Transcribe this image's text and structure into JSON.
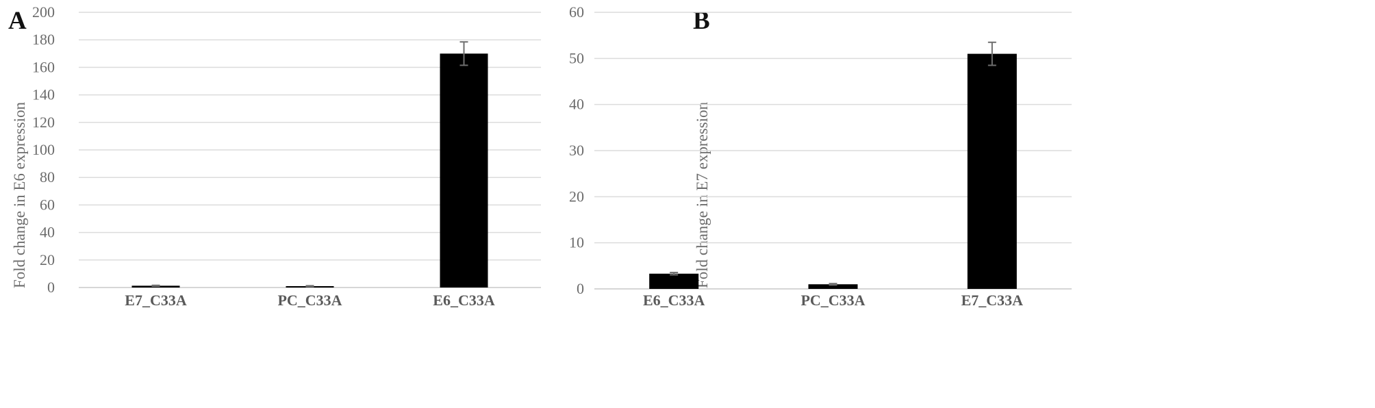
{
  "chart_data": [
    {
      "panel_label": "A",
      "type": "bar",
      "title": "",
      "xlabel": "",
      "ylabel": "Fold change in  E6 expression",
      "categories": [
        "E7_C33A",
        "PC_C33A",
        "E6_C33A"
      ],
      "values": [
        1.3,
        1.0,
        170
      ],
      "errors": [
        0.3,
        0.3,
        8.5
      ],
      "ylim": [
        0,
        200
      ],
      "yticks": [
        0,
        20,
        40,
        60,
        80,
        100,
        120,
        140,
        160,
        180,
        200
      ],
      "grid": true,
      "legend": "none",
      "bar_color": "#000000"
    },
    {
      "panel_label": "B",
      "type": "bar",
      "title": "",
      "xlabel": "",
      "ylabel": "Fold change in E7 expression",
      "categories": [
        "E6_C33A",
        "PC_C33A",
        "E7_C33A"
      ],
      "values": [
        3.3,
        1.0,
        51
      ],
      "errors": [
        0.25,
        0.15,
        2.5
      ],
      "ylim": [
        0,
        60
      ],
      "yticks": [
        0,
        10,
        20,
        30,
        40,
        50,
        60
      ],
      "grid": true,
      "legend": "none",
      "bar_color": "#000000"
    }
  ]
}
